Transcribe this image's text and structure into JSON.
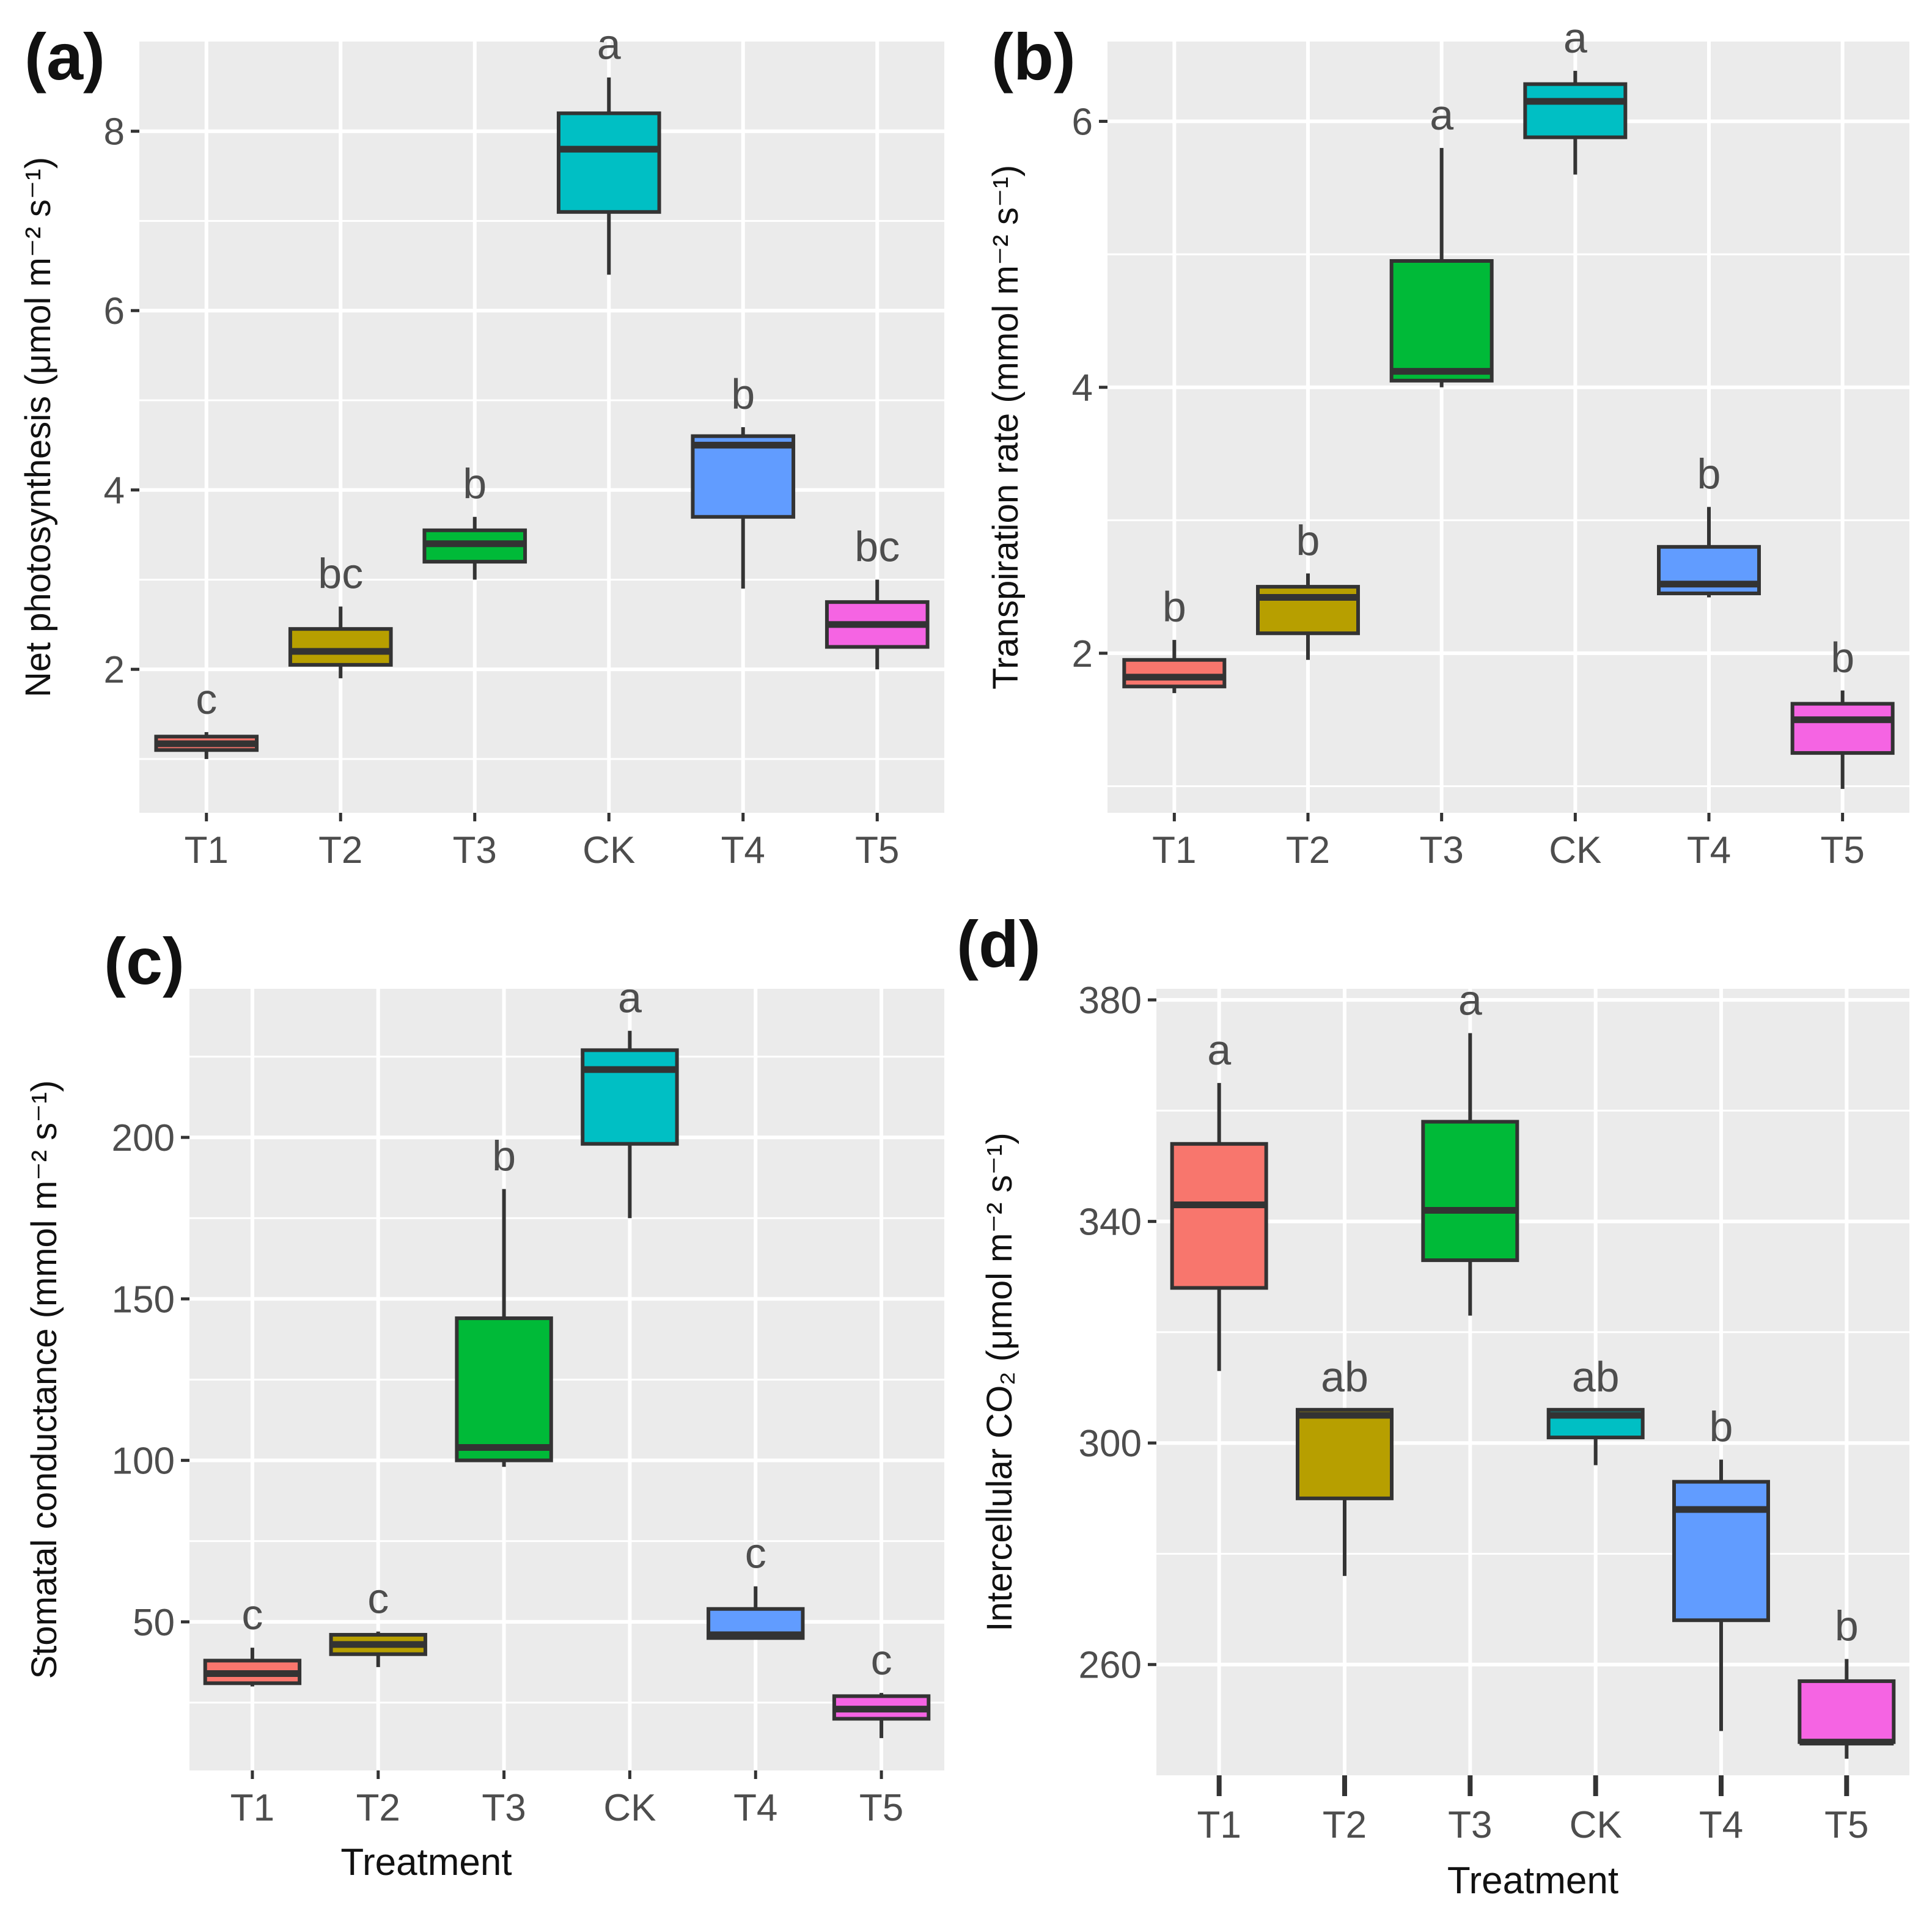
{
  "figure": {
    "background": "#ffffff",
    "panel_background": "#ebebeb",
    "grid_color": "#ffffff",
    "box_edge": "#333333"
  },
  "chart_data": [
    {
      "id": "a",
      "panel_label": "(a)",
      "type": "boxplot",
      "categories": [
        "T1",
        "T2",
        "T3",
        "CK",
        "T4",
        "T5"
      ],
      "xlabel": "",
      "ylabel": "Net photosynthesis (μmol m⁻² s⁻¹)",
      "ylim": [
        0.4,
        9.0
      ],
      "yticks": [
        2,
        4,
        6,
        8
      ],
      "tick_labels": [
        "2",
        "4",
        "6",
        "8"
      ],
      "grid": true,
      "colors": [
        "#f8766d",
        "#b79f00",
        "#00ba38",
        "#00bfc4",
        "#619cff",
        "#f564e3"
      ],
      "boxes": [
        {
          "min": 1.0,
          "q1": 1.1,
          "median": 1.17,
          "q3": 1.25,
          "max": 1.3
        },
        {
          "min": 1.9,
          "q1": 2.05,
          "median": 2.2,
          "q3": 2.45,
          "max": 2.7
        },
        {
          "min": 3.0,
          "q1": 3.2,
          "median": 3.4,
          "q3": 3.55,
          "max": 3.7
        },
        {
          "min": 6.4,
          "q1": 7.1,
          "median": 7.8,
          "q3": 8.2,
          "max": 8.6
        },
        {
          "min": 2.9,
          "q1": 3.7,
          "median": 4.5,
          "q3": 4.6,
          "max": 4.7
        },
        {
          "min": 2.0,
          "q1": 2.25,
          "median": 2.5,
          "q3": 2.75,
          "max": 3.0
        }
      ],
      "significance": [
        "c",
        "bc",
        "b",
        "a",
        "b",
        "bc"
      ]
    },
    {
      "id": "b",
      "panel_label": "(b)",
      "type": "boxplot",
      "categories": [
        "T1",
        "T2",
        "T3",
        "CK",
        "T4",
        "T5"
      ],
      "xlabel": "",
      "ylabel": "Transpiration rate (mmol m⁻² s⁻¹)",
      "ylim": [
        0.8,
        6.6
      ],
      "yticks": [
        2,
        4,
        6
      ],
      "tick_labels": [
        "2",
        "4",
        "6"
      ],
      "grid": true,
      "colors": [
        "#f8766d",
        "#b79f00",
        "#00ba38",
        "#00bfc4",
        "#619cff",
        "#f564e3"
      ],
      "boxes": [
        {
          "min": 1.7,
          "q1": 1.75,
          "median": 1.82,
          "q3": 1.95,
          "max": 2.1
        },
        {
          "min": 1.95,
          "q1": 2.15,
          "median": 2.42,
          "q3": 2.5,
          "max": 2.6
        },
        {
          "min": 4.0,
          "q1": 4.05,
          "median": 4.12,
          "q3": 4.95,
          "max": 5.8
        },
        {
          "min": 5.6,
          "q1": 5.88,
          "median": 6.15,
          "q3": 6.28,
          "max": 6.38
        },
        {
          "min": 2.42,
          "q1": 2.45,
          "median": 2.52,
          "q3": 2.8,
          "max": 3.1
        },
        {
          "min": 0.98,
          "q1": 1.25,
          "median": 1.5,
          "q3": 1.62,
          "max": 1.72
        }
      ],
      "significance": [
        "b",
        "b",
        "a",
        "a",
        "b",
        "b"
      ]
    },
    {
      "id": "c",
      "panel_label": "(c)",
      "type": "boxplot",
      "categories": [
        "T1",
        "T2",
        "T3",
        "CK",
        "T4",
        "T5"
      ],
      "xlabel": "Treatment",
      "ylabel": "Stomatal conductance (mmol m⁻² s⁻¹)",
      "ylim": [
        4,
        246
      ],
      "yticks": [
        50,
        100,
        150,
        200
      ],
      "tick_labels": [
        "50",
        "100",
        "150",
        "200"
      ],
      "grid": true,
      "colors": [
        "#f8766d",
        "#b79f00",
        "#00ba38",
        "#00bfc4",
        "#619cff",
        "#f564e3"
      ],
      "boxes": [
        {
          "min": 30,
          "q1": 31,
          "median": 34,
          "q3": 38,
          "max": 42
        },
        {
          "min": 36,
          "q1": 40,
          "median": 43,
          "q3": 46,
          "max": 47
        },
        {
          "min": 98,
          "q1": 100,
          "median": 104,
          "q3": 144,
          "max": 184
        },
        {
          "min": 175,
          "q1": 198,
          "median": 221,
          "q3": 227,
          "max": 233
        },
        {
          "min": 45,
          "q1": 45,
          "median": 46,
          "q3": 54,
          "max": 61
        },
        {
          "min": 14,
          "q1": 20,
          "median": 23,
          "q3": 27,
          "max": 28
        }
      ],
      "significance": [
        "c",
        "c",
        "b",
        "a",
        "c",
        "c"
      ]
    },
    {
      "id": "d",
      "panel_label": "(d)",
      "type": "boxplot",
      "categories": [
        "T1",
        "T2",
        "T3",
        "CK",
        "T4",
        "T5"
      ],
      "xlabel": "Treatment",
      "ylabel": "Intercellular CO₂ (μmol  m⁻² s⁻¹)",
      "ylim": [
        240,
        382
      ],
      "yticks": [
        260,
        300,
        340,
        380
      ],
      "tick_labels": [
        "260",
        "300",
        "340",
        "380"
      ],
      "grid": true,
      "colors": [
        "#f8766d",
        "#b79f00",
        "#00ba38",
        "#00bfc4",
        "#619cff",
        "#f564e3"
      ],
      "boxes": [
        {
          "min": 313,
          "q1": 328,
          "median": 343,
          "q3": 354,
          "max": 365
        },
        {
          "min": 276,
          "q1": 290,
          "median": 305,
          "q3": 306,
          "max": 306
        },
        {
          "min": 323,
          "q1": 333,
          "median": 342,
          "q3": 358,
          "max": 374
        },
        {
          "min": 296,
          "q1": 301,
          "median": 305,
          "q3": 306,
          "max": 306
        },
        {
          "min": 248,
          "q1": 268,
          "median": 288,
          "q3": 293,
          "max": 297
        },
        {
          "min": 243,
          "q1": 246,
          "median": 246,
          "q3": 257,
          "max": 261
        }
      ],
      "significance": [
        "a",
        "ab",
        "a",
        "ab",
        "b",
        "b"
      ]
    }
  ]
}
